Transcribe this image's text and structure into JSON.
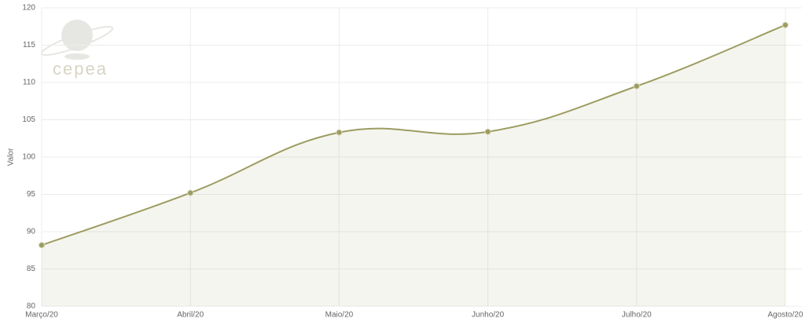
{
  "chart_data": {
    "type": "area",
    "y_label": "Valor",
    "logo": "cepea",
    "categories": [
      "Março/20",
      "Abril/20",
      "Maio/20",
      "Junho/20",
      "Julho/20",
      "Agosto/20"
    ],
    "series": [
      {
        "name": "Valor",
        "color": "#9c9c62",
        "values": [
          88.2,
          95.2,
          103.3,
          103.4,
          109.5,
          117.7
        ]
      }
    ],
    "ylim": [
      80,
      120
    ],
    "yticks": [
      80,
      85,
      90,
      95,
      100,
      105,
      110,
      115,
      120
    ],
    "grid": true
  }
}
